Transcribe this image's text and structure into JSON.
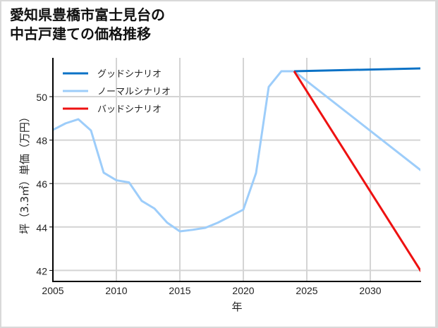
{
  "title_line1": "愛知県豊橋市富士見台の",
  "title_line2": "中古戸建ての価格推移",
  "chart_data": {
    "type": "line",
    "title": "愛知県豊橋市富士見台の中古戸建ての価格推移",
    "xlabel": "年",
    "ylabel": "坪（3.3㎡）単価（万円）",
    "xlim": [
      2005,
      2034
    ],
    "ylim": [
      41.5,
      51.8
    ],
    "xticks": [
      2005,
      2010,
      2015,
      2020,
      2025,
      2030
    ],
    "yticks": [
      42,
      44,
      46,
      48,
      50
    ],
    "grid": true,
    "legend_position": "upper left",
    "series": [
      {
        "name": "グッドシナリオ",
        "color": "#0b72c6",
        "x": [
          2024,
          2034
        ],
        "values": [
          51.17,
          51.3
        ]
      },
      {
        "name": "ノーマルシナリオ",
        "color": "#9dcdfa",
        "x": [
          2005,
          2006,
          2007,
          2008,
          2009,
          2010,
          2011,
          2012,
          2013,
          2014,
          2015,
          2016,
          2017,
          2018,
          2019,
          2020,
          2021,
          2022,
          2023,
          2024,
          2034
        ],
        "values": [
          48.47,
          48.77,
          48.96,
          48.44,
          46.5,
          46.15,
          46.05,
          45.2,
          44.85,
          44.2,
          43.8,
          43.87,
          43.96,
          44.2,
          44.5,
          44.8,
          46.48,
          50.45,
          51.17,
          51.17,
          46.6
        ]
      },
      {
        "name": "バッドシナリオ",
        "color": "#ee1111",
        "x": [
          2024,
          2034
        ],
        "values": [
          51.17,
          41.95
        ]
      }
    ]
  },
  "legend": [
    {
      "label": "グッドシナリオ",
      "color": "#0b72c6"
    },
    {
      "label": "ノーマルシナリオ",
      "color": "#9dcdfa"
    },
    {
      "label": "バッドシナリオ",
      "color": "#ee1111"
    }
  ]
}
